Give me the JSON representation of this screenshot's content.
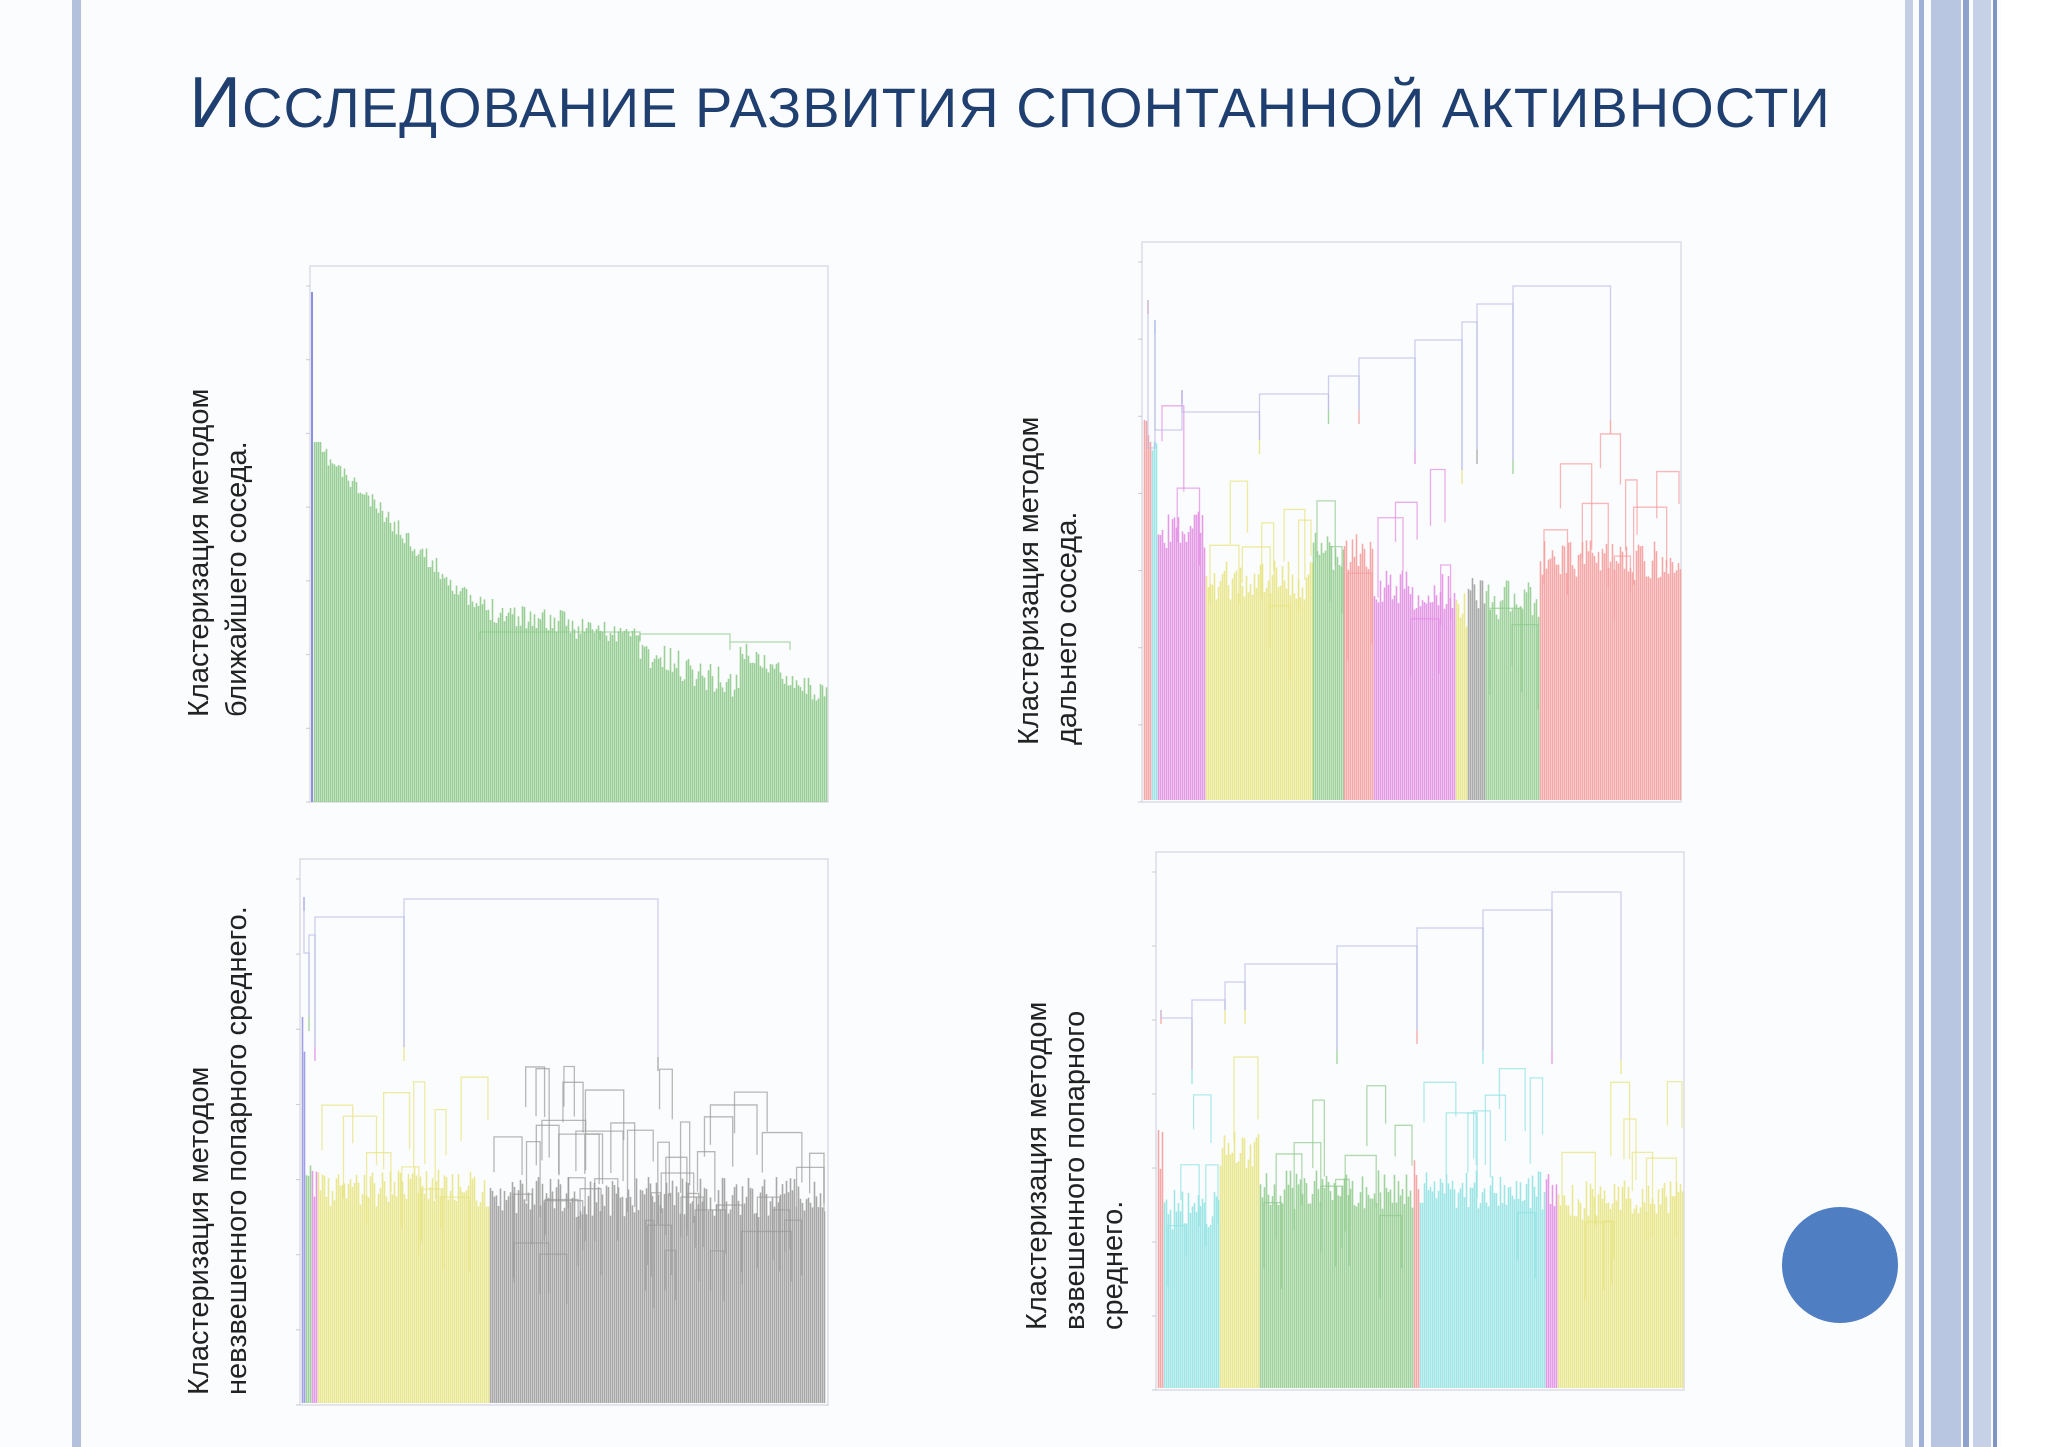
{
  "slide": {
    "title_initial": "И",
    "title_rest": "сследование развития спонтанной активности"
  },
  "panels": [
    {
      "id": "nearest-neighbor",
      "label_lines": [
        "Кластеризация методом",
        "ближайшего соседа."
      ],
      "colors": [
        "#8fcb8c"
      ]
    },
    {
      "id": "farthest-neighbor",
      "label_lines": [
        "Кластеризация методом",
        "дальнего соседа."
      ],
      "colors": [
        "#f59a9a",
        "#e28ae2",
        "#e7e47c",
        "#8fcb8c",
        "#9c9c9c",
        "#8ee3e3"
      ]
    },
    {
      "id": "unweighted-pair-average",
      "label_lines": [
        "Кластеризация методом",
        "невзвешенного попарного среднего."
      ],
      "colors": [
        "#e7e47c",
        "#9a9a9a",
        "#e28ae2",
        "#8fcb8c"
      ]
    },
    {
      "id": "weighted-pair-average",
      "label_lines": [
        "Кластеризация методом",
        "взвешенного попарного",
        "среднего."
      ],
      "colors": [
        "#8ee3e3",
        "#e7e47c",
        "#8fcb8c",
        "#e28ae2",
        "#f59a9a"
      ]
    }
  ],
  "theme": {
    "title_color": "#1f3f70",
    "accent_circle": "#4f7fc2",
    "stripe_color": "#b4c1dc"
  }
}
